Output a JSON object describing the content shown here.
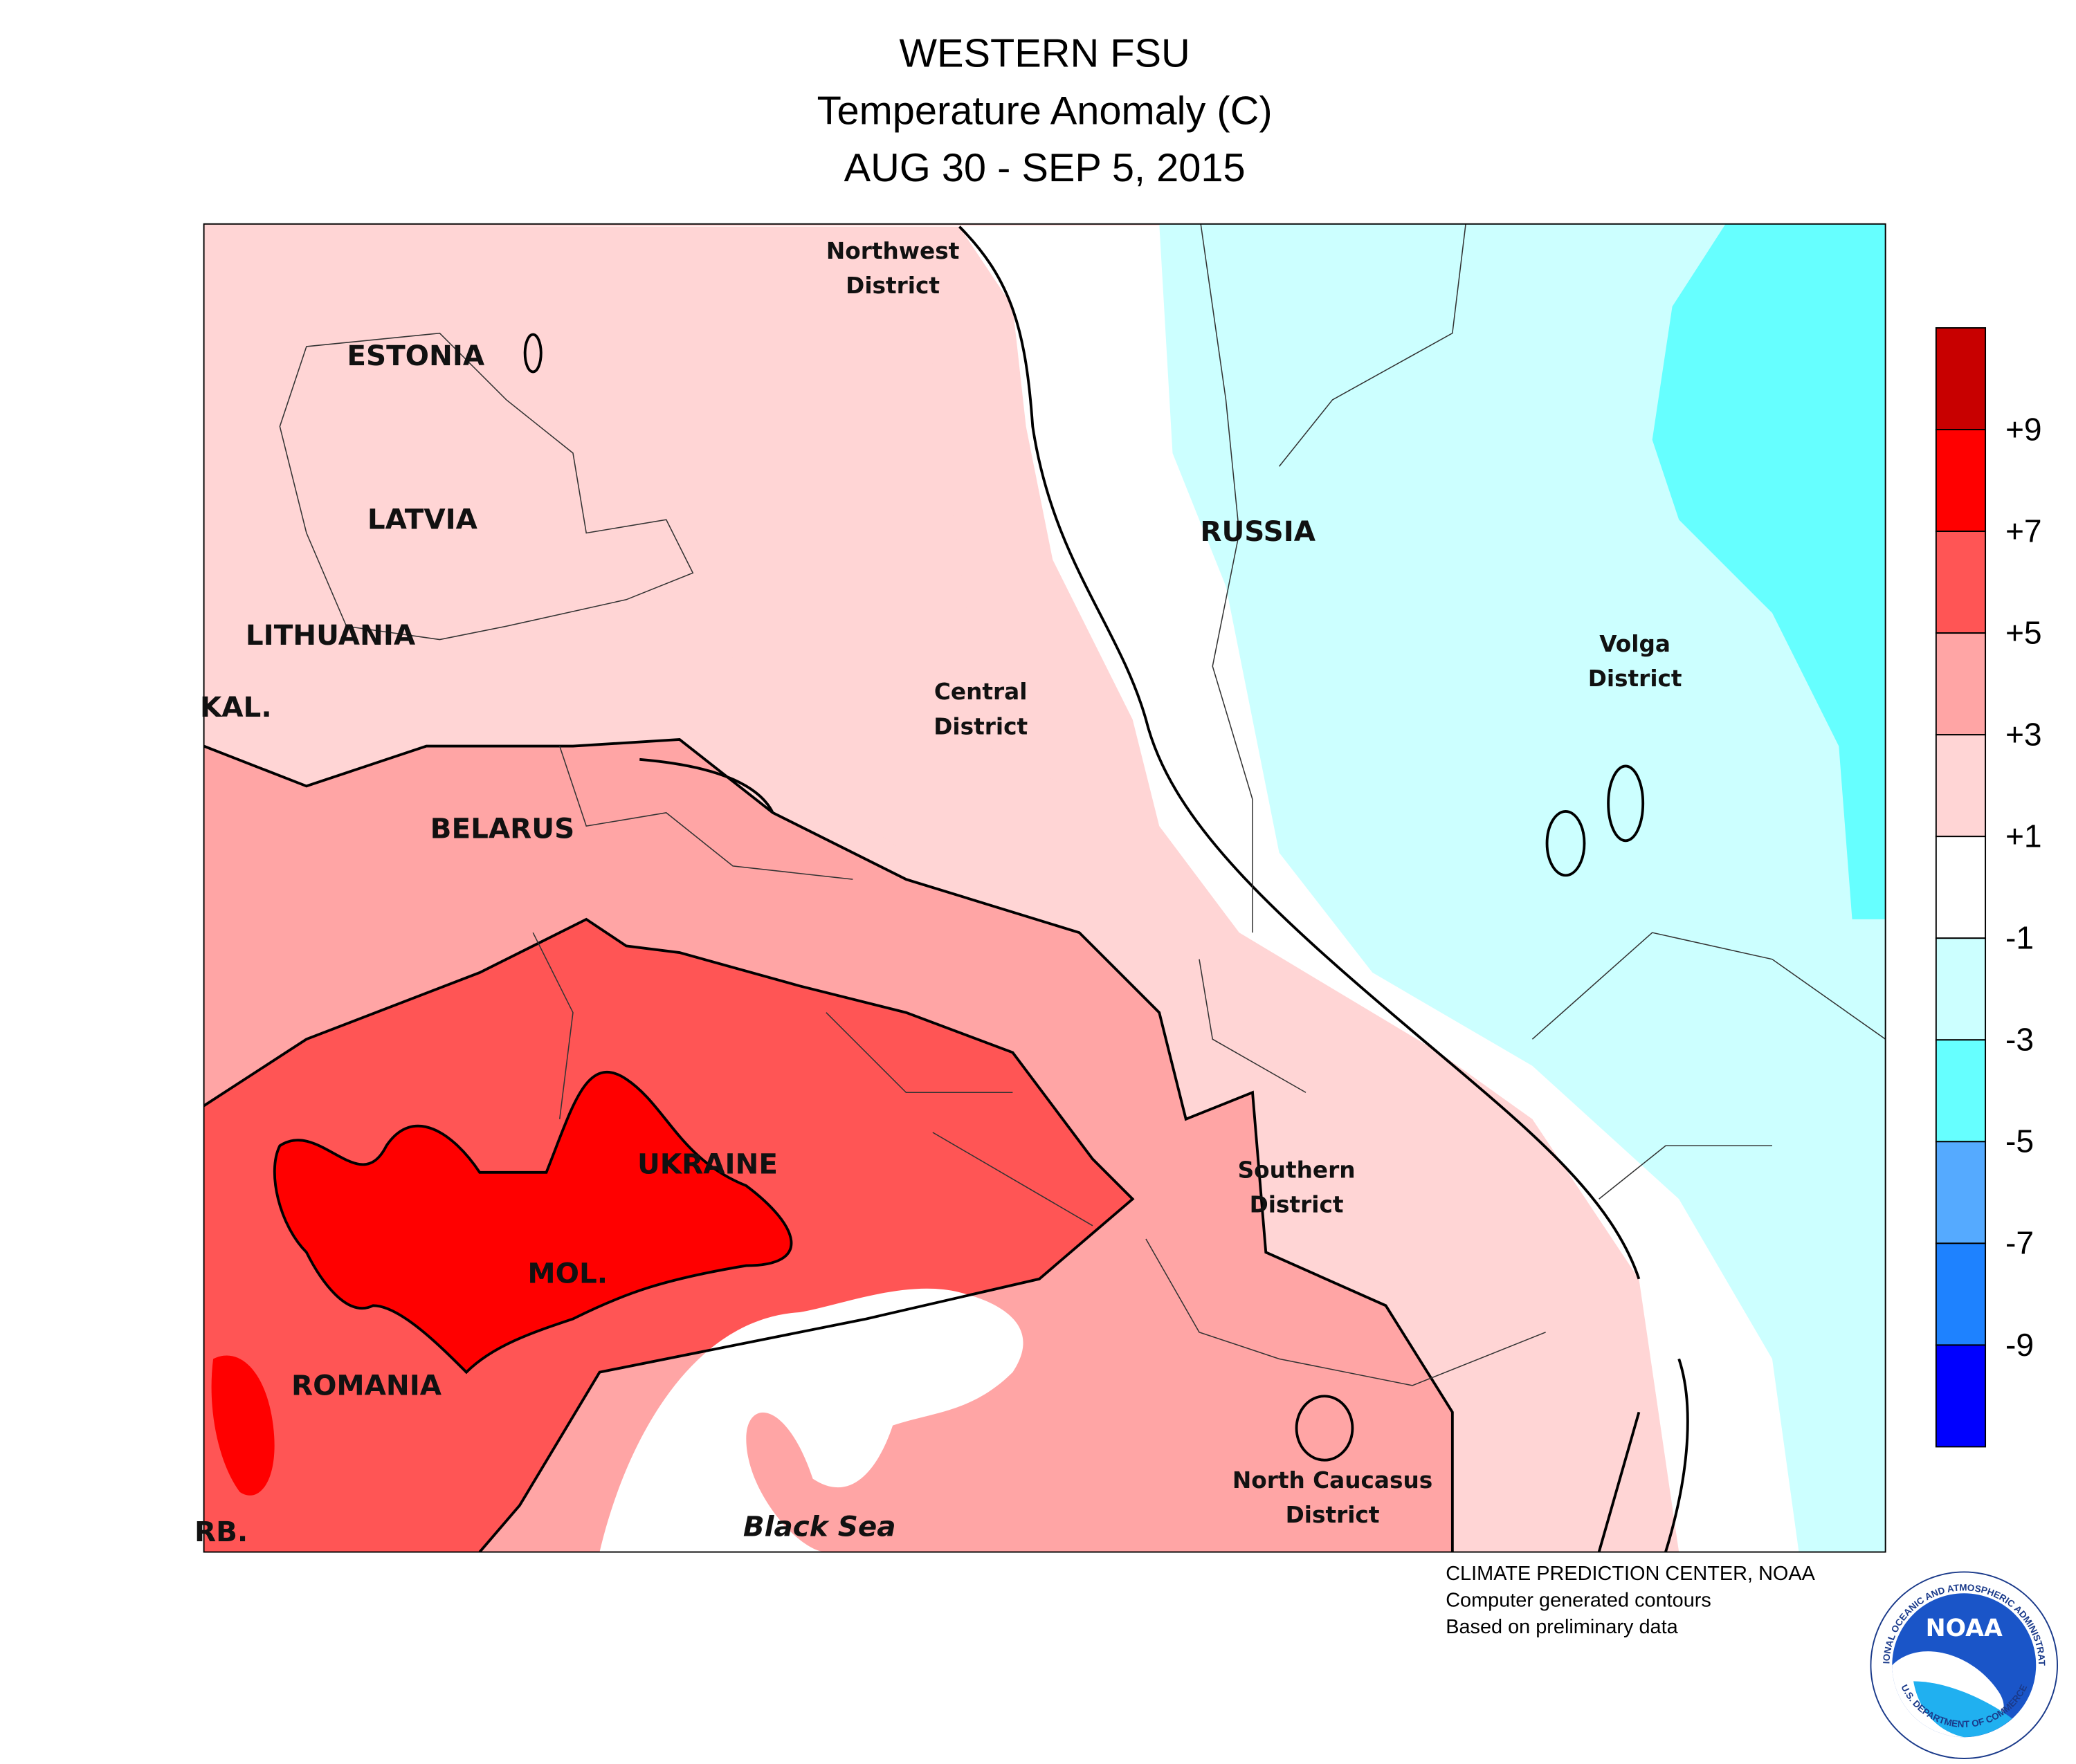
{
  "header": {
    "lines": [
      "WESTERN FSU",
      "Temperature Anomaly (C)",
      "AUG 30 - SEP 5, 2015"
    ]
  },
  "labels": [
    {
      "lines": [
        "ESTONIA"
      ],
      "style": "big"
    },
    {
      "lines": [
        "LATVIA"
      ],
      "style": "big"
    },
    {
      "lines": [
        "LITHUANIA"
      ],
      "style": "big"
    },
    {
      "lines": [
        "KAL."
      ],
      "style": "big"
    },
    {
      "lines": [
        "BELARUS"
      ],
      "style": "big"
    },
    {
      "lines": [
        "UKRAINE"
      ],
      "style": "big"
    },
    {
      "lines": [
        "MOL."
      ],
      "style": "big"
    },
    {
      "lines": [
        "ROMANIA"
      ],
      "style": "big"
    },
    {
      "lines": [
        "RB."
      ],
      "style": "big"
    },
    {
      "lines": [
        "RUSSIA"
      ],
      "style": "big"
    },
    {
      "lines": [
        "Northwest",
        "District"
      ],
      "style": "sm"
    },
    {
      "lines": [
        "Central",
        "District"
      ],
      "style": "sm"
    },
    {
      "lines": [
        "Volga",
        "District"
      ],
      "style": "sm"
    },
    {
      "lines": [
        "Southern",
        "District"
      ],
      "style": "sm"
    },
    {
      "lines": [
        "North Caucasus",
        "District"
      ],
      "style": "sm"
    },
    {
      "lines": [
        "Black Sea"
      ],
      "style": "sea"
    }
  ],
  "legend": {
    "colors": [
      "#c80000",
      "#ff0000",
      "#ff5555",
      "#ffa5a5",
      "#ffd5d5",
      "#ffffff",
      "#ccffff",
      "#66ffff",
      "#55aaff",
      "#1e82ff",
      "#0000ff"
    ],
    "labels": [
      "+9",
      "+7",
      "+5",
      "+3",
      "+1",
      "-1",
      "-3",
      "-5",
      "-7",
      "-9"
    ]
  },
  "credits": [
    "CLIMATE PREDICTION CENTER, NOAA",
    "Computer generated contours",
    "Based on preliminary data"
  ],
  "logo": {
    "text": "NOAA",
    "ring_top": "NATIONAL OCEANIC AND ATMOSPHERIC ADMINISTRATION",
    "ring_bottom": "U.S. DEPARTMENT OF COMMERCE"
  }
}
